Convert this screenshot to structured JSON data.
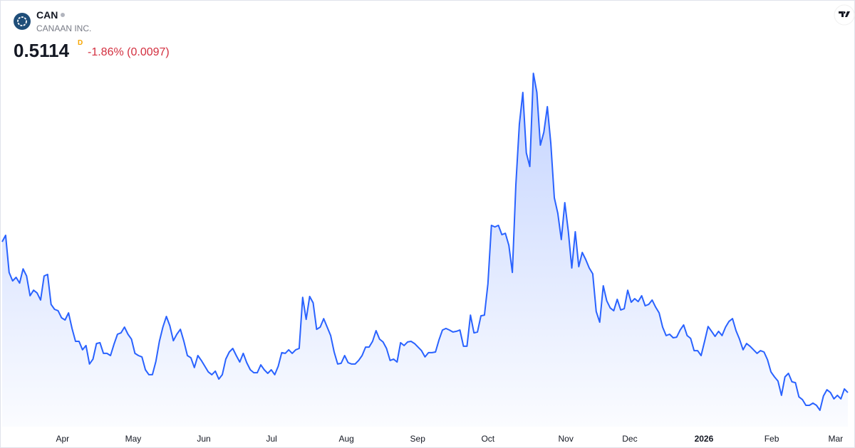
{
  "header": {
    "symbol": "CAN",
    "name": "CANAAN INC.",
    "price": 0.5114,
    "interval": "D",
    "change": "-1.86% (0.0097)"
  },
  "chart_data": {
    "type": "line",
    "series": [
      {
        "name": "CAN",
        "color": "#2962ff",
        "values": [
          1.19,
          1.219,
          1.052,
          1.014,
          1.03,
          1.004,
          1.068,
          1.036,
          0.947,
          0.972,
          0.96,
          0.928,
          1.036,
          1.043,
          0.908,
          0.886,
          0.88,
          0.848,
          0.838,
          0.87,
          0.8,
          0.742,
          0.742,
          0.704,
          0.723,
          0.64,
          0.662,
          0.732,
          0.736,
          0.688,
          0.688,
          0.678,
          0.729,
          0.774,
          0.78,
          0.806,
          0.774,
          0.752,
          0.688,
          0.678,
          0.672,
          0.614,
          0.592,
          0.592,
          0.652,
          0.742,
          0.806,
          0.854,
          0.812,
          0.745,
          0.774,
          0.796,
          0.742,
          0.678,
          0.668,
          0.624,
          0.678,
          0.656,
          0.63,
          0.604,
          0.592,
          0.608,
          0.572,
          0.592,
          0.662,
          0.694,
          0.71,
          0.678,
          0.649,
          0.688,
          0.646,
          0.614,
          0.601,
          0.601,
          0.636,
          0.614,
          0.598,
          0.614,
          0.592,
          0.63,
          0.691,
          0.688,
          0.704,
          0.688,
          0.704,
          0.71,
          0.94,
          0.841,
          0.944,
          0.915,
          0.796,
          0.806,
          0.844,
          0.806,
          0.768,
          0.694,
          0.64,
          0.643,
          0.678,
          0.646,
          0.64,
          0.64,
          0.656,
          0.678,
          0.716,
          0.716,
          0.742,
          0.79,
          0.752,
          0.739,
          0.71,
          0.656,
          0.662,
          0.649,
          0.736,
          0.723,
          0.739,
          0.742,
          0.732,
          0.716,
          0.7,
          0.672,
          0.691,
          0.691,
          0.694,
          0.748,
          0.793,
          0.8,
          0.793,
          0.784,
          0.787,
          0.793,
          0.72,
          0.72,
          0.86,
          0.78,
          0.784,
          0.857,
          0.86,
          1.001,
          1.264,
          1.257,
          1.264,
          1.222,
          1.228,
          1.174,
          1.052,
          1.446,
          1.718,
          1.862,
          1.59,
          1.529,
          1.948,
          1.862,
          1.625,
          1.683,
          1.798,
          1.632,
          1.388,
          1.318,
          1.2,
          1.366,
          1.238,
          1.072,
          1.235,
          1.078,
          1.142,
          1.11,
          1.072,
          1.046,
          0.876,
          0.828,
          0.992,
          0.924,
          0.892,
          0.88,
          0.931,
          0.883,
          0.889,
          0.972,
          0.918,
          0.934,
          0.921,
          0.947,
          0.902,
          0.908,
          0.928,
          0.896,
          0.87,
          0.806,
          0.768,
          0.774,
          0.758,
          0.761,
          0.793,
          0.816,
          0.768,
          0.755,
          0.7,
          0.7,
          0.678,
          0.742,
          0.809,
          0.787,
          0.764,
          0.787,
          0.768,
          0.806,
          0.832,
          0.844,
          0.79,
          0.752,
          0.704,
          0.732,
          0.72,
          0.704,
          0.688,
          0.7,
          0.694,
          0.659,
          0.604,
          0.582,
          0.563,
          0.499,
          0.582,
          0.598,
          0.56,
          0.556,
          0.492,
          0.48,
          0.454,
          0.454,
          0.464,
          0.454,
          0.432,
          0.496,
          0.524,
          0.512,
          0.483,
          0.499,
          0.483,
          0.528,
          0.5114
        ]
      }
    ],
    "ylim": [
      0.358,
      1.99
    ],
    "xticks": [
      {
        "value": 17.3,
        "label": "Apr"
      },
      {
        "value": 37.5,
        "label": "May"
      },
      {
        "value": 57.7,
        "label": "Jun"
      },
      {
        "value": 77.1,
        "label": "Jul"
      },
      {
        "value": 98.5,
        "label": "Aug"
      },
      {
        "value": 118.9,
        "label": "Sep"
      },
      {
        "value": 139.0,
        "label": "Oct"
      },
      {
        "value": 161.3,
        "label": "Nov"
      },
      {
        "value": 179.6,
        "label": "Dec"
      },
      {
        "value": 200.8,
        "label": "2026"
      },
      {
        "value": 220.2,
        "label": "Feb"
      },
      {
        "value": 238.5,
        "label": "Mar"
      }
    ]
  }
}
